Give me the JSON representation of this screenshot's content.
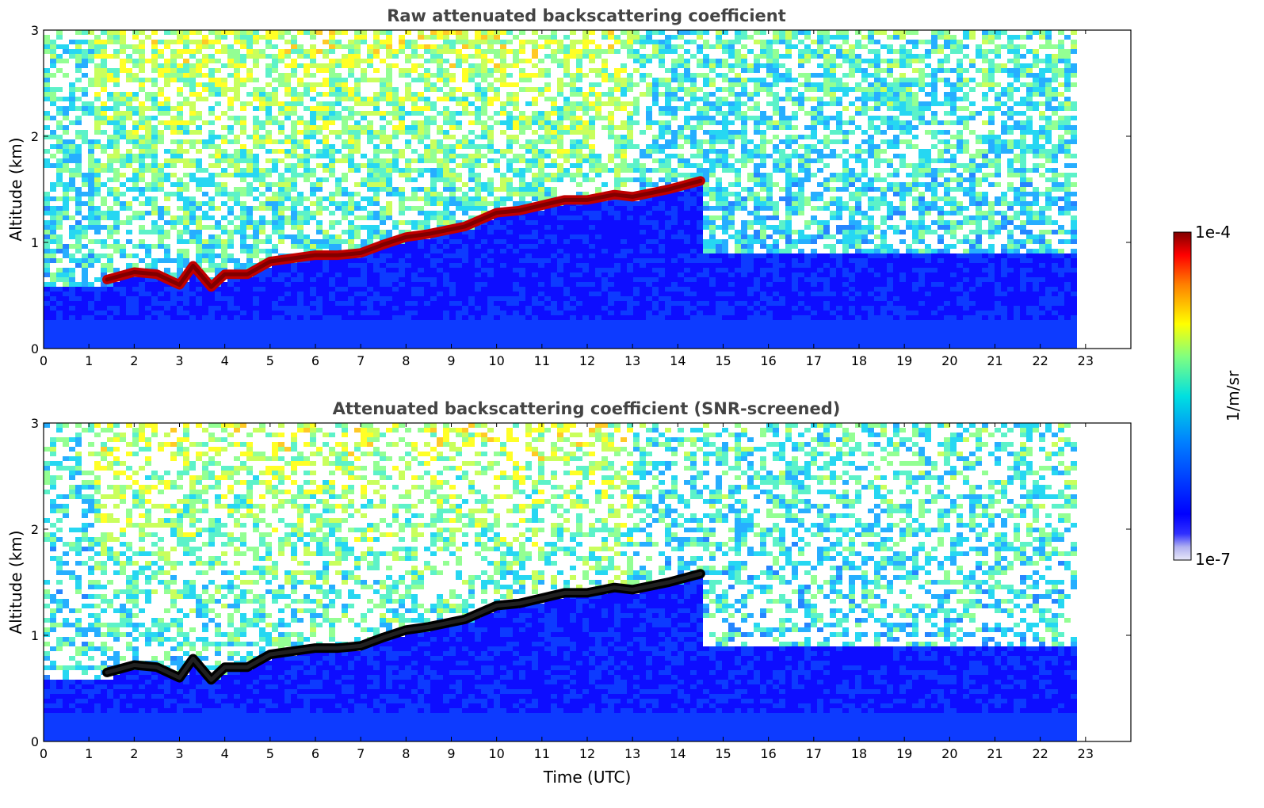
{
  "chart_data": [
    {
      "type": "heatmap",
      "title": "Raw attenuated backscattering coefficient",
      "xlabel": "",
      "ylabel": "Altitude (km)",
      "xlim": [
        0,
        24
      ],
      "ylim": [
        0,
        3
      ],
      "xticks": [
        "0",
        "1",
        "2",
        "3",
        "4",
        "5",
        "6",
        "7",
        "8",
        "9",
        "10",
        "11",
        "12",
        "13",
        "14",
        "15",
        "16",
        "17",
        "18",
        "19",
        "20",
        "21",
        "22",
        "23"
      ],
      "yticks": [
        "0",
        "1",
        "2",
        "3"
      ],
      "data_end_time": 22.8,
      "layer_top_km": [
        {
          "t": 1.4,
          "z": 0.65
        },
        {
          "t": 2.0,
          "z": 0.72
        },
        {
          "t": 2.5,
          "z": 0.7
        },
        {
          "t": 3.0,
          "z": 0.6
        },
        {
          "t": 3.3,
          "z": 0.78
        },
        {
          "t": 3.7,
          "z": 0.58
        },
        {
          "t": 4.0,
          "z": 0.7
        },
        {
          "t": 4.5,
          "z": 0.7
        },
        {
          "t": 5.0,
          "z": 0.82
        },
        {
          "t": 5.5,
          "z": 0.85
        },
        {
          "t": 6.0,
          "z": 0.88
        },
        {
          "t": 6.5,
          "z": 0.88
        },
        {
          "t": 7.0,
          "z": 0.9
        },
        {
          "t": 7.5,
          "z": 0.98
        },
        {
          "t": 8.0,
          "z": 1.05
        },
        {
          "t": 8.5,
          "z": 1.08
        },
        {
          "t": 9.3,
          "z": 1.15
        },
        {
          "t": 10.0,
          "z": 1.28
        },
        {
          "t": 10.5,
          "z": 1.3
        },
        {
          "t": 11.0,
          "z": 1.35
        },
        {
          "t": 11.5,
          "z": 1.4
        },
        {
          "t": 12.0,
          "z": 1.4
        },
        {
          "t": 12.6,
          "z": 1.45
        },
        {
          "t": 13.0,
          "z": 1.43
        },
        {
          "t": 13.8,
          "z": 1.5
        },
        {
          "t": 14.5,
          "z": 1.58
        }
      ]
    },
    {
      "type": "heatmap",
      "title": "Attenuated backscattering coefficient (SNR-screened)",
      "xlabel": "Time (UTC)",
      "ylabel": "Altitude (km)",
      "xlim": [
        0,
        24
      ],
      "ylim": [
        0,
        3
      ],
      "xticks": [
        "0",
        "1",
        "2",
        "3",
        "4",
        "5",
        "6",
        "7",
        "8",
        "9",
        "10",
        "11",
        "12",
        "13",
        "14",
        "15",
        "16",
        "17",
        "18",
        "19",
        "20",
        "21",
        "22",
        "23"
      ],
      "yticks": [
        "0",
        "1",
        "2",
        "3"
      ],
      "data_end_time": 22.8
    }
  ],
  "colorbar": {
    "label": "1/m/sr",
    "max_label": "1e-4",
    "min_label": "1e-7",
    "scale": "log",
    "colormap": "jet",
    "range": [
      1e-07,
      0.0001
    ]
  }
}
